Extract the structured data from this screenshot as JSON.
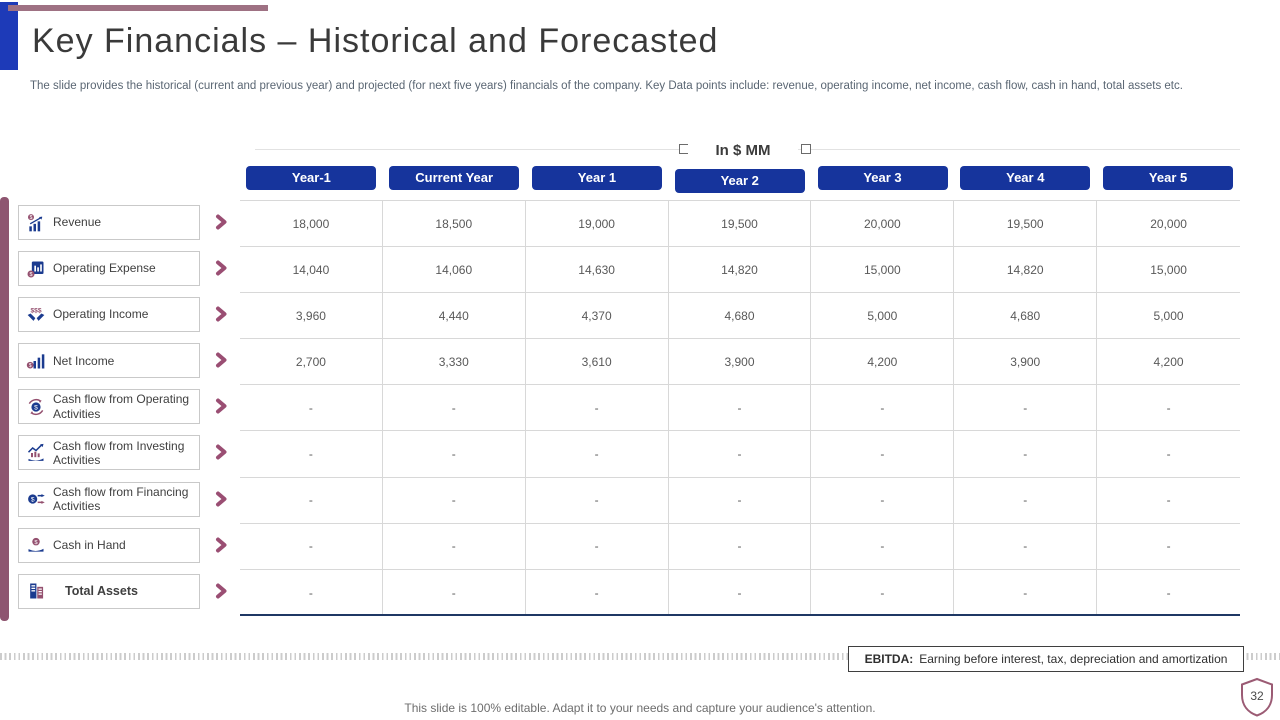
{
  "slide": {
    "title": "Key Financials – Historical and Forecasted",
    "subtitle": "The slide provides the historical (current and previous year) and projected (for next five years) financials of the company. Key Data points include: revenue, operating income, net income, cash flow, cash in hand, total assets etc.",
    "unit_label": "In $ MM",
    "ebitda_label": "EBITDA:",
    "ebitda_text": "Earning before interest, tax,  depreciation and amortization",
    "footer": "This slide is 100% editable. Adapt it to your needs and capture your audience's attention.",
    "page_number": "32"
  },
  "table": {
    "columns": [
      "Year-1",
      "Current Year",
      "Year 1",
      "Year 2",
      "Year 3",
      "Year 4",
      "Year 5"
    ],
    "rows": [
      {
        "label": "Revenue",
        "icon": "revenue-icon",
        "bold": false,
        "values": [
          "18,000",
          "18,500",
          "19,000",
          "19,500",
          "20,000",
          "19,500",
          "20,000"
        ]
      },
      {
        "label": "Operating Expense",
        "icon": "operating-expense-icon",
        "bold": false,
        "values": [
          "14,040",
          "14,060",
          "14,630",
          "14,820",
          "15,000",
          "14,820",
          "15,000"
        ]
      },
      {
        "label": "Operating Income",
        "icon": "operating-income-icon",
        "bold": false,
        "values": [
          "3,960",
          "4,440",
          "4,370",
          "4,680",
          "5,000",
          "4,680",
          "5,000"
        ]
      },
      {
        "label": "Net Income",
        "icon": "net-income-icon",
        "bold": false,
        "values": [
          "2,700",
          "3,330",
          "3,610",
          "3,900",
          "4,200",
          "3,900",
          "4,200"
        ]
      },
      {
        "label": "Cash flow from Operating Activities",
        "icon": "cashflow-operating-icon",
        "bold": false,
        "values": [
          "-",
          "-",
          "-",
          "-",
          "-",
          "-",
          "-"
        ]
      },
      {
        "label": "Cash flow from Investing Activities",
        "icon": "cashflow-investing-icon",
        "bold": false,
        "values": [
          "-",
          "-",
          "-",
          "-",
          "-",
          "-",
          "-"
        ]
      },
      {
        "label": "Cash flow from Financing Activities",
        "icon": "cashflow-financing-icon",
        "bold": false,
        "values": [
          "-",
          "-",
          "-",
          "-",
          "-",
          "-",
          "-"
        ]
      },
      {
        "label": "Cash in Hand",
        "icon": "cash-in-hand-icon",
        "bold": false,
        "values": [
          "-",
          "-",
          "-",
          "-",
          "-",
          "-",
          "-"
        ]
      },
      {
        "label": "Total Assets",
        "icon": "total-assets-icon",
        "bold": true,
        "values": [
          "-",
          "-",
          "-",
          "-",
          "-",
          "-",
          "-"
        ]
      }
    ]
  },
  "colors": {
    "header_pill_blue": "#16349c",
    "corner_blue": "#1d3ab8",
    "top_bar_mauve": "#9e7183",
    "side_bar_plum": "#8e5570",
    "chevron_plum": "#9a4e73",
    "table_bottom_navy": "#1f3864",
    "badge_outline_plum": "#9b5b74"
  }
}
